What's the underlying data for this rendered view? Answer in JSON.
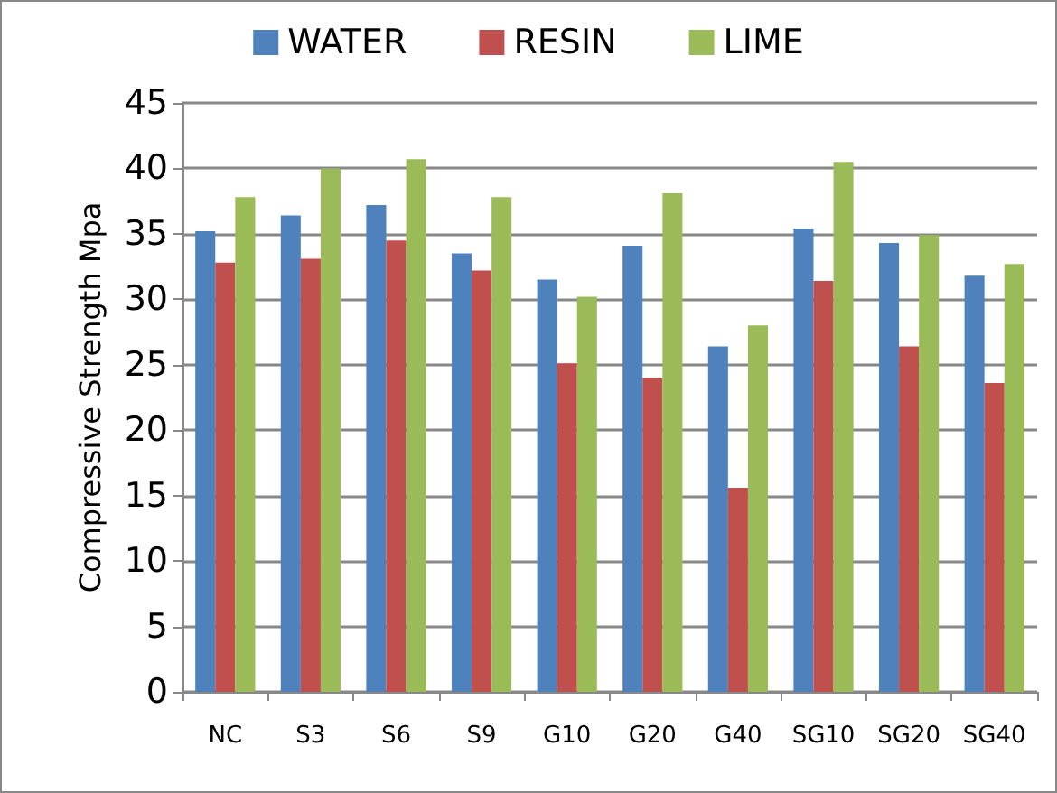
{
  "chart_data": {
    "type": "bar",
    "categories": [
      "NC",
      "S3",
      "S6",
      "S9",
      "G10",
      "G20",
      "G40",
      "SG10",
      "SG20",
      "SG40"
    ],
    "series": [
      {
        "name": "WATER",
        "color": "#4f81bd",
        "values": [
          35.2,
          36.4,
          37.2,
          33.5,
          31.5,
          34.1,
          26.4,
          35.4,
          34.3,
          31.8
        ]
      },
      {
        "name": "RESIN",
        "color": "#c0504d",
        "values": [
          32.8,
          33.1,
          34.5,
          32.2,
          25.1,
          24.0,
          15.6,
          31.4,
          26.4,
          23.6
        ]
      },
      {
        "name": "LIME",
        "color": "#9bbb59",
        "values": [
          37.8,
          40.0,
          40.7,
          37.8,
          30.2,
          38.1,
          28.0,
          40.5,
          34.9,
          32.7
        ]
      }
    ],
    "ylabel": "Compressive Strength Mpa",
    "ylim": [
      0,
      45
    ],
    "yticks": [
      0,
      5,
      10,
      15,
      20,
      25,
      30,
      35,
      40,
      45
    ],
    "grid": "y",
    "legend": "top"
  }
}
